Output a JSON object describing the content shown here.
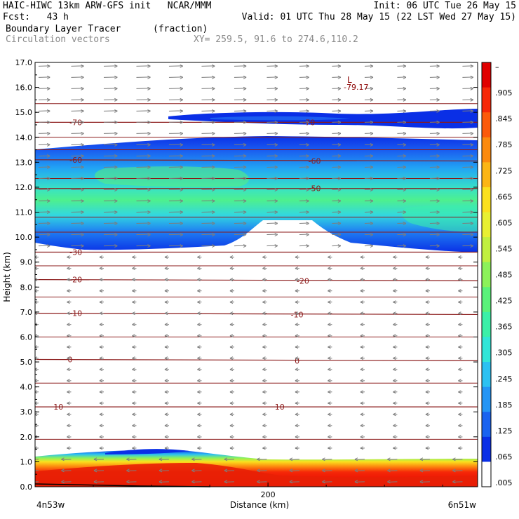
{
  "header": {
    "line1_left": "HAIC-HIWC 13km ARW-GFS init   NCAR/MMM",
    "line1_right": "Init: 06 UTC Tue 26 May 15",
    "line2_left": "Fcst:   43 h",
    "line2_right": "Valid: 01 UTC Thu 28 May 15 (22 LST Wed 27 May 15)",
    "line3_left": "Boundary Layer Tracer",
    "line3_mid": "(fraction)",
    "line4_left": "Circulation vectors",
    "line4_mid": "XY= 259.5, 91.6 to 274.6,110.2"
  },
  "chart_data": {
    "type": "heatmap",
    "xlabel": "Distance (km)",
    "ylabel": "Height (km)",
    "xlim": [
      0,
      380
    ],
    "ylim": [
      0,
      17
    ],
    "x_ticks": [
      {
        "value": 200,
        "label": "200"
      }
    ],
    "x_end_labels": {
      "left": "4n53w",
      "right": "6n51w"
    },
    "y_ticks": [
      "0.0",
      "1.0",
      "2.0",
      "3.0",
      "4.0",
      "5.0",
      "6.0",
      "7.0",
      "8.0",
      "9.0",
      "10.0",
      "11.0",
      "12.0",
      "13.0",
      "14.0",
      "15.0",
      "16.0",
      "17.0"
    ],
    "colorbar": {
      "labels": [
        ".005",
        ".065",
        ".125",
        ".185",
        ".245",
        ".305",
        ".365",
        ".425",
        ".485",
        ".545",
        ".605",
        ".665",
        ".725",
        ".785",
        ".845",
        ".905",
        "–"
      ],
      "colors": [
        "#ffffff",
        "#0a2fe6",
        "#1a63f0",
        "#2495f5",
        "#2cc1f2",
        "#32e6d8",
        "#3cf0a8",
        "#5af27a",
        "#8cf25a",
        "#c0f040",
        "#e8f032",
        "#fbe01e",
        "#fcb514",
        "#fc8a0e",
        "#fc5a0a",
        "#f62808",
        "#e00000"
      ]
    },
    "temperature_contours": [
      {
        "label": "10",
        "y": [
          3.2,
          3.2
        ],
        "label_pos": [
          [
            20,
            3.2
          ],
          [
            210,
            3.2
          ]
        ]
      },
      {
        "label": "0",
        "y": [
          5.1,
          5.05
        ],
        "label_pos": [
          [
            30,
            5.1
          ],
          [
            225,
            5.05
          ]
        ]
      },
      {
        "label": "-10",
        "y": [
          6.95,
          6.9
        ],
        "label_pos": [
          [
            35,
            6.95
          ],
          [
            225,
            6.9
          ]
        ]
      },
      {
        "label": "-20",
        "y": [
          8.3,
          8.25
        ],
        "label_pos": [
          [
            35,
            8.3
          ],
          [
            230,
            8.25
          ]
        ]
      },
      {
        "label": "-30",
        "y": [
          9.4,
          9.4
        ],
        "label_pos": [
          [
            35,
            9.4
          ]
        ]
      },
      {
        "label": "-50",
        "y": [
          11.95,
          11.95
        ],
        "label_pos": [
          [
            240,
            11.95
          ]
        ]
      },
      {
        "label": "-60",
        "y": [
          13.1,
          13.05
        ],
        "label_pos": [
          [
            35,
            13.1
          ],
          [
            240,
            13.05
          ]
        ]
      },
      {
        "label": "-70",
        "y": [
          14.6,
          14.6
        ],
        "label_pos": [
          [
            35,
            14.6
          ],
          [
            235,
            14.6
          ]
        ]
      }
    ],
    "extra_levels_km": [
      1.9,
      4.15,
      6.0,
      7.6,
      8.85,
      10.2,
      10.8,
      12.35,
      13.5,
      14.0,
      15.35
    ],
    "low_center": {
      "symbol": "L",
      "value": "-79.17",
      "x": 230,
      "y": 16.25
    }
  }
}
